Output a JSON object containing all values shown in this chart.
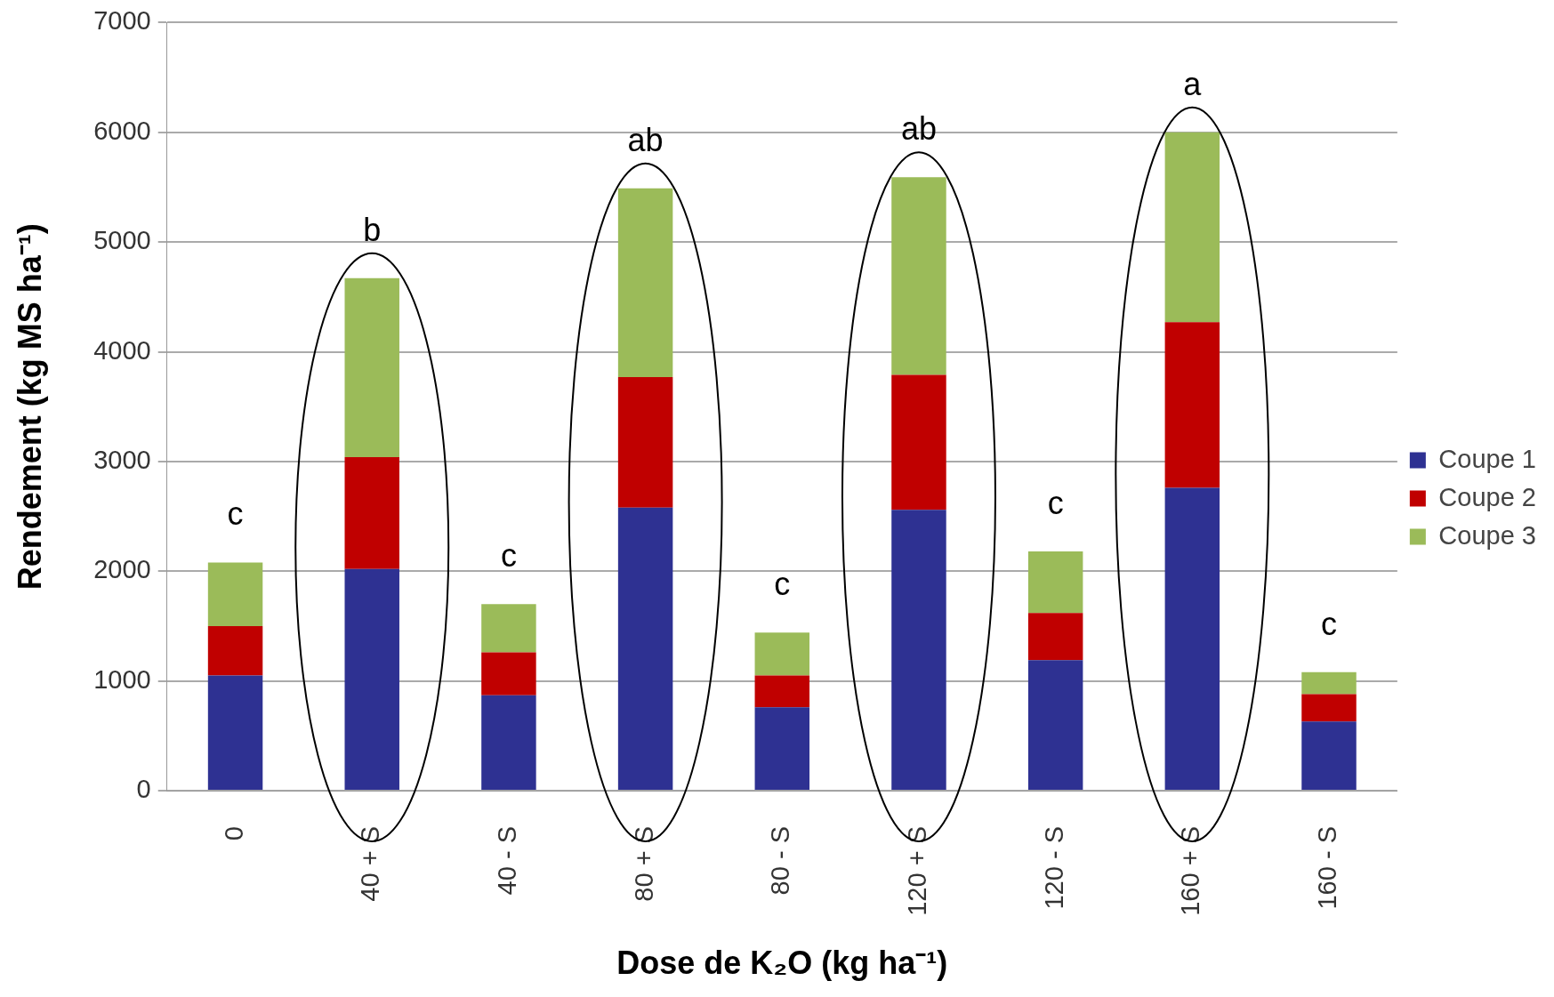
{
  "chart_data": {
    "type": "bar",
    "stacked": true,
    "xlabel": "Dose de K₂O (kg ha⁻¹)",
    "ylabel": "Rendement (kg MS ha⁻¹)",
    "categories": [
      "0",
      "40 + S",
      "40 - S",
      "80 + S",
      "80 - S",
      "120 + S",
      "120 - S",
      "160 + S",
      "160 - S"
    ],
    "series": [
      {
        "name": "Coupe 1",
        "color": "#2e3192",
        "values": [
          1050,
          2020,
          870,
          2580,
          760,
          2560,
          1190,
          2760,
          630
        ]
      },
      {
        "name": "Coupe 2",
        "color": "#c00000",
        "values": [
          450,
          1020,
          390,
          1190,
          290,
          1230,
          430,
          1510,
          250
        ]
      },
      {
        "name": "Coupe 3",
        "color": "#9bbb59",
        "values": [
          580,
          1630,
          440,
          1720,
          390,
          1800,
          560,
          1730,
          200
        ]
      }
    ],
    "ylim": [
      0,
      7000
    ],
    "yticks": [
      0,
      1000,
      2000,
      3000,
      4000,
      5000,
      6000,
      7000
    ],
    "grid": "y",
    "legend": "right",
    "annotations": [
      {
        "text": "c",
        "x": "0",
        "y": 2080
      },
      {
        "text": "b",
        "x": "40 + S",
        "y": 4670
      },
      {
        "text": "c",
        "x": "40 - S",
        "y": 1700
      },
      {
        "text": "ab",
        "x": "80 + S",
        "y": 5490
      },
      {
        "text": "c",
        "x": "80 - S",
        "y": 1440
      },
      {
        "text": "ab",
        "x": "120 + S",
        "y": 5590
      },
      {
        "text": "c",
        "x": "120 - S",
        "y": 2180
      },
      {
        "text": "a",
        "x": "160 + S",
        "y": 6000
      },
      {
        "text": "c",
        "x": "160 - S",
        "y": 1080
      }
    ]
  }
}
